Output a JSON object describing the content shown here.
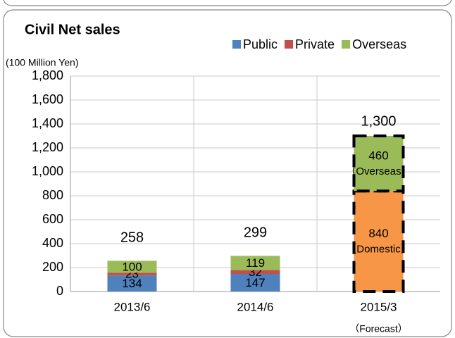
{
  "chart_data": {
    "type": "stacked-bar",
    "title": "Civil Net sales",
    "y_label": "(100 Million Yen)",
    "categories": [
      "2013/6",
      "2014/6",
      "2015/3"
    ],
    "series": [
      {
        "name": "Public",
        "color": "#4f81bd",
        "values": [
          134,
          147,
          null
        ]
      },
      {
        "name": "Private",
        "color": "#c0504d",
        "values": [
          23,
          32,
          null
        ]
      },
      {
        "name": "Overseas",
        "color": "#9bbb59",
        "values": [
          100,
          119,
          null
        ]
      }
    ],
    "forecast": {
      "category_index": 2,
      "note": "（Forecast）",
      "segments": [
        {
          "name": "（Domestic）",
          "value": 840,
          "color": "#f79646"
        },
        {
          "name": "（Overseas）",
          "value": 460,
          "color": "#9bbb59"
        }
      ]
    },
    "totals": [
      258,
      299,
      {
        "value": 1300,
        "label": "1,300"
      }
    ],
    "ylim": [
      0,
      1800
    ],
    "yticks": [
      0,
      200,
      400,
      600,
      800,
      {
        "value": 1000,
        "label": "1,000"
      },
      {
        "value": 1200,
        "label": "1,200"
      },
      {
        "value": 1400,
        "label": "1,400"
      },
      {
        "value": 1600,
        "label": "1,600"
      },
      {
        "value": 1800,
        "label": "1,800"
      }
    ],
    "grid": true,
    "legend": "top-right"
  }
}
